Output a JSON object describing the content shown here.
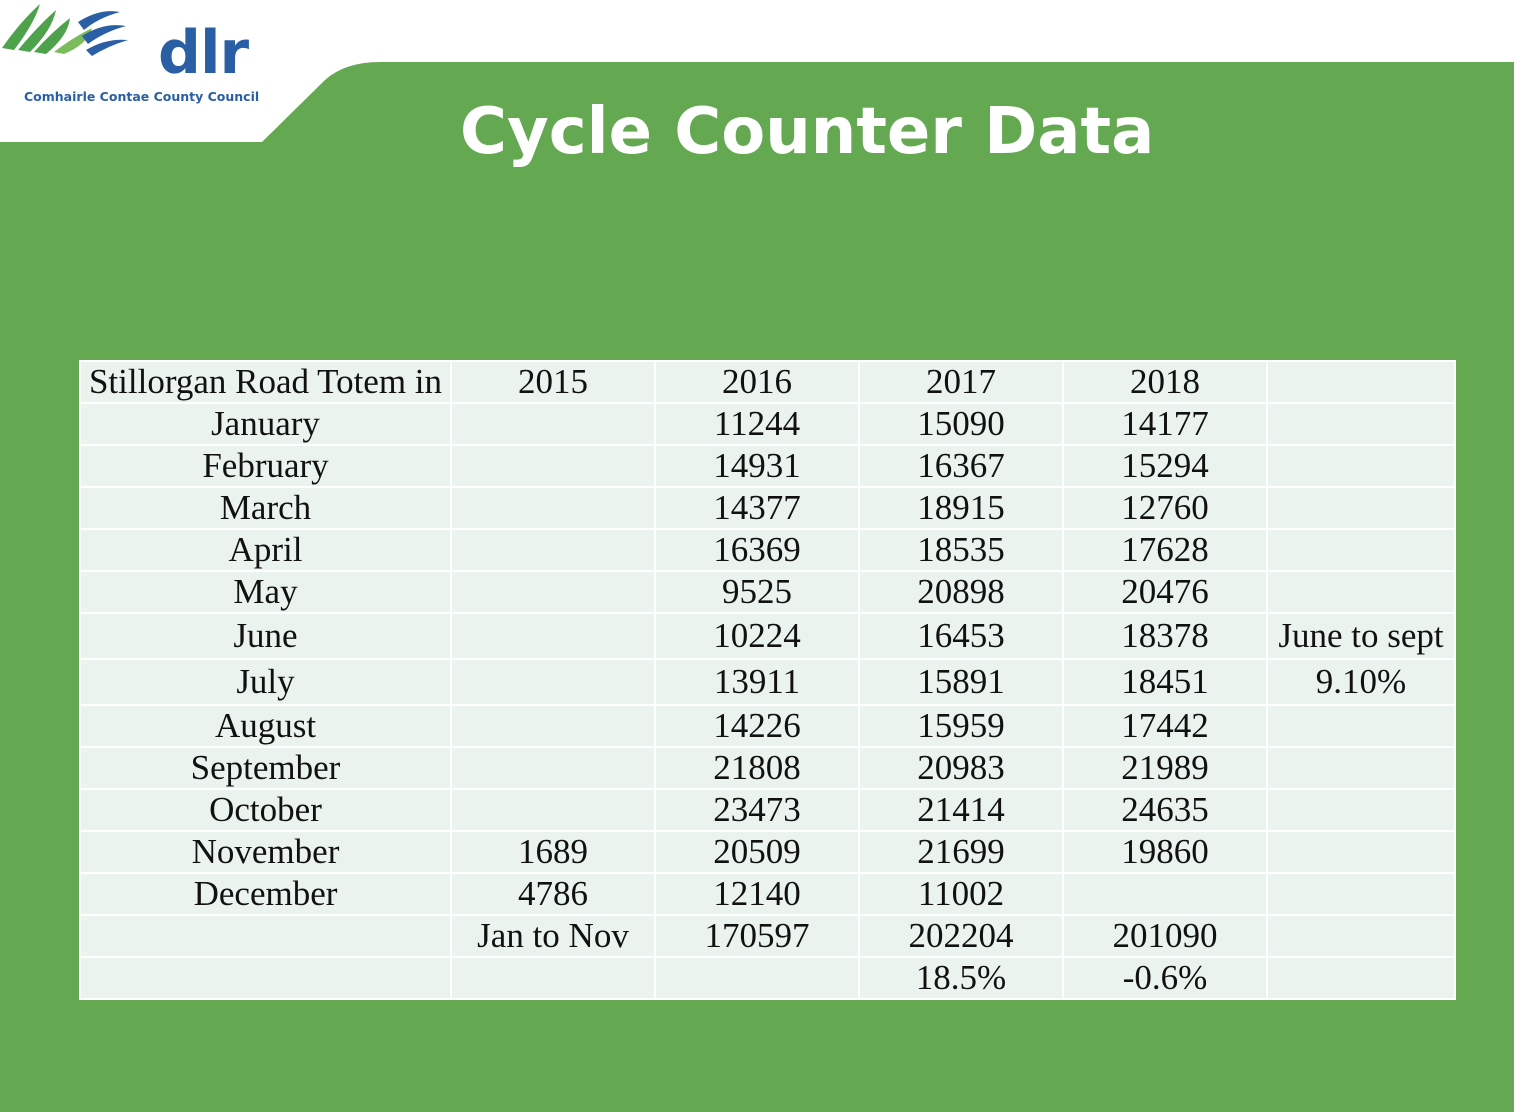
{
  "logo": {
    "wordmark": "dlr",
    "tagline": "Comhairle Contae County Council",
    "colors": {
      "green": "#4ea24b",
      "blue": "#2a5fa5"
    }
  },
  "title": "Cycle Counter Data",
  "colors": {
    "background": "#64a952",
    "cell": "#eaf3ee",
    "text": "#111111"
  },
  "table": {
    "header": [
      "Stillorgan Road Totem in",
      "2015",
      "2016",
      "2017",
      "2018",
      ""
    ],
    "rows": [
      [
        "January",
        "",
        "11244",
        "15090",
        "14177"
      ],
      [
        "February",
        "",
        "14931",
        "16367",
        "15294"
      ],
      [
        "March",
        "",
        "14377",
        "18915",
        "12760"
      ],
      [
        "April",
        "",
        "16369",
        "18535",
        "17628"
      ],
      [
        "May",
        "",
        "9525",
        "20898",
        "20476"
      ],
      [
        "June",
        "",
        "10224",
        "16453",
        "18378"
      ],
      [
        "July",
        "",
        "13911",
        "15891",
        "18451"
      ],
      [
        "August",
        "",
        "14226",
        "15959",
        "17442"
      ],
      [
        "September",
        "",
        "21808",
        "20983",
        "21989"
      ],
      [
        "October",
        "",
        "23473",
        "21414",
        "24635"
      ],
      [
        "November",
        "1689",
        "20509",
        "21699",
        "19860"
      ],
      [
        "December",
        "4786",
        "12140",
        "11002",
        ""
      ],
      [
        "",
        "Jan to Nov",
        "170597",
        "202204",
        "201090"
      ],
      [
        "",
        "",
        "",
        "18.5%",
        "-0.6%"
      ]
    ],
    "note": {
      "line1": "June to sept",
      "line2": "9.10%"
    }
  }
}
